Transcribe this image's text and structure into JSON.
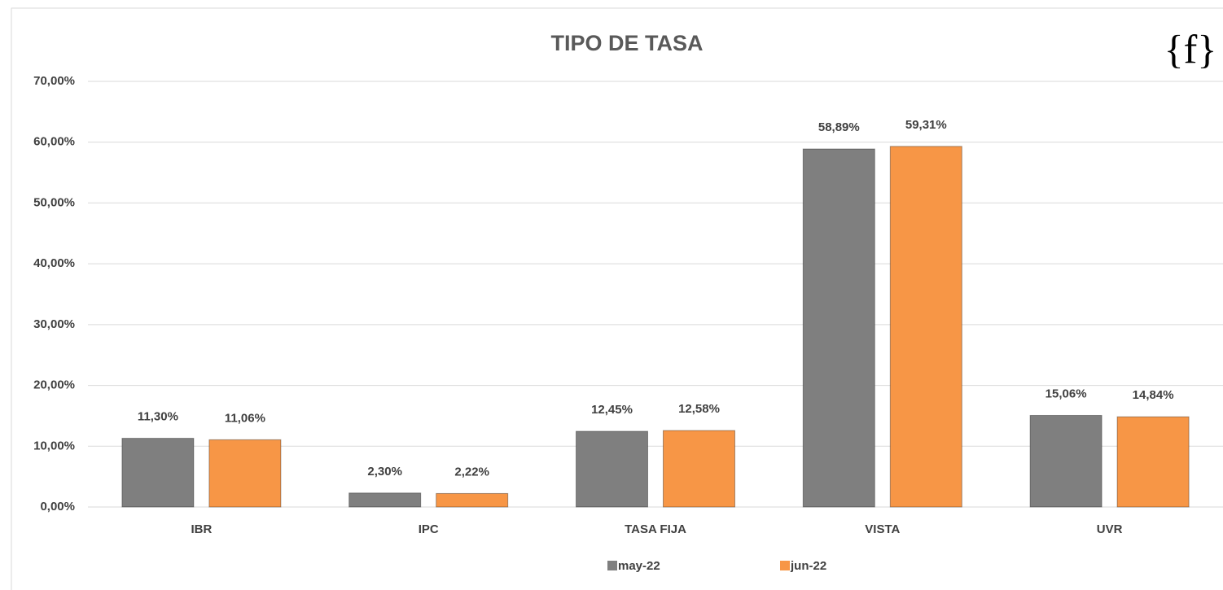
{
  "chart_data": {
    "type": "bar",
    "title": "TIPO DE TASA",
    "logo": "{f}",
    "categories": [
      "IBR",
      "IPC",
      "TASA FIJA",
      "VISTA",
      "UVR"
    ],
    "series": [
      {
        "name": "may-22",
        "color": "#7f7f7f",
        "values": [
          11.3,
          2.3,
          12.45,
          58.89,
          15.06
        ],
        "value_labels": [
          "11,30%",
          "2,30%",
          "12,45%",
          "58,89%",
          "15,06%"
        ]
      },
      {
        "name": "jun-22",
        "color": "#f79646",
        "values": [
          11.06,
          2.22,
          12.58,
          59.31,
          14.84
        ],
        "value_labels": [
          "11,06%",
          "2,22%",
          "12,58%",
          "59,31%",
          "14,84%"
        ]
      }
    ],
    "ylim": [
      0,
      70
    ],
    "yticks": [
      {
        "value": 0,
        "label": "0,00%"
      },
      {
        "value": 10,
        "label": "10,00%"
      },
      {
        "value": 20,
        "label": "20,00%"
      },
      {
        "value": 30,
        "label": "30,00%"
      },
      {
        "value": 40,
        "label": "40,00%"
      },
      {
        "value": 50,
        "label": "50,00%"
      },
      {
        "value": 60,
        "label": "60,00%"
      },
      {
        "value": 70,
        "label": "70,00%"
      }
    ],
    "grid": true,
    "legend": "bottom"
  }
}
